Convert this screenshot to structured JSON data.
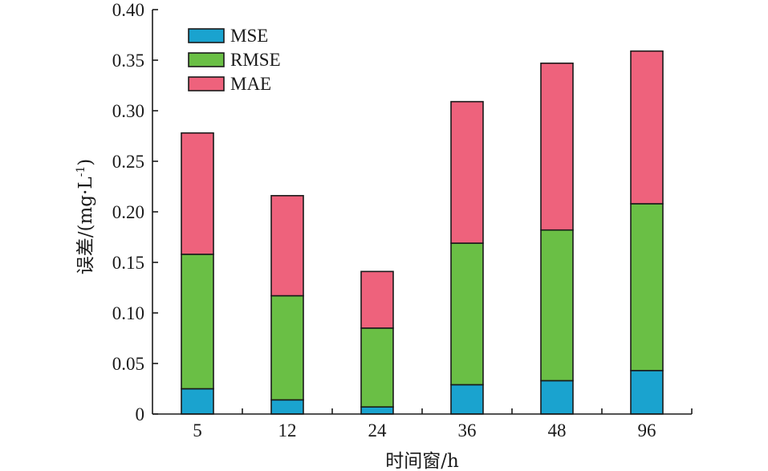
{
  "chart_data": {
    "type": "bar",
    "stacked": true,
    "categories": [
      "5",
      "12",
      "24",
      "36",
      "48",
      "96"
    ],
    "series": [
      {
        "name": "MSE",
        "color": "#1aa3cf",
        "values": [
          0.025,
          0.014,
          0.007,
          0.029,
          0.033,
          0.043
        ]
      },
      {
        "name": "RMSE",
        "color": "#6abf45",
        "values": [
          0.133,
          0.103,
          0.078,
          0.14,
          0.149,
          0.165
        ]
      },
      {
        "name": "MAE",
        "color": "#ee627c",
        "values": [
          0.12,
          0.099,
          0.056,
          0.14,
          0.165,
          0.151
        ]
      }
    ],
    "xlabel": "时间窗/h",
    "ylabel": "误差/(mg·L",
    "ylabel_sup": "-1",
    "ylabel_close": ")",
    "ylim": [
      0,
      0.4
    ],
    "yticks": [
      "0",
      "0.05",
      "0.10",
      "0.15",
      "0.20",
      "0.25",
      "0.30",
      "0.35",
      "0.40"
    ],
    "legend_position": "top-left",
    "grid": false
  }
}
